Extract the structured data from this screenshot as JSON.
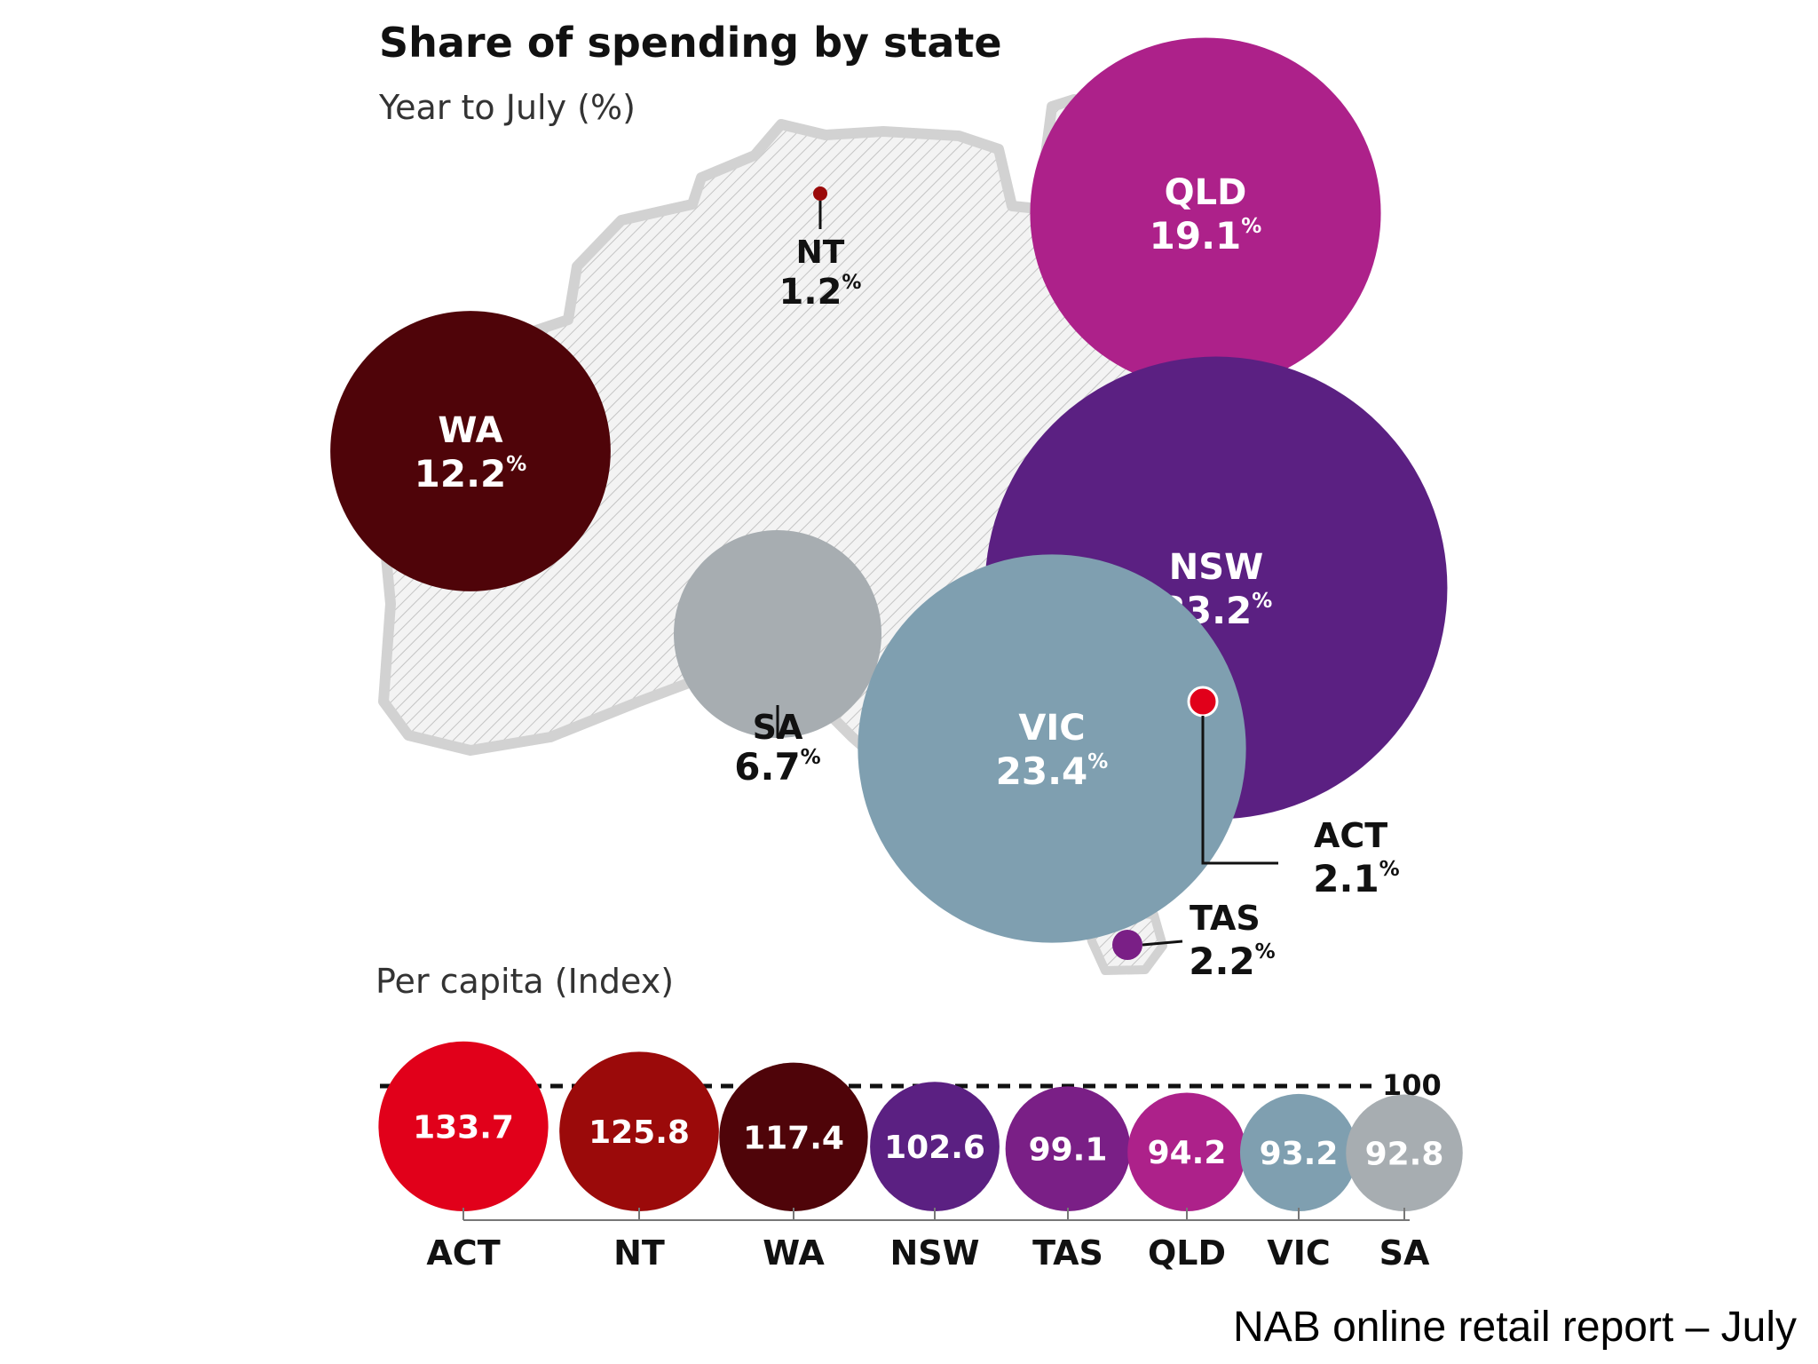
{
  "chart_data": [
    {
      "type": "bubble-map",
      "title": "Share of spending by state",
      "subtitle": "Year to July (%)",
      "unit": "%",
      "states": [
        {
          "name": "NT",
          "value": 1.2,
          "color": "#9b0a0a"
        },
        {
          "name": "QLD",
          "value": 19.1,
          "color": "#ad218a"
        },
        {
          "name": "WA",
          "value": 12.2,
          "color": "#4f0409"
        },
        {
          "name": "NSW",
          "value": 33.2,
          "color": "#5b2082"
        },
        {
          "name": "SA",
          "value": 6.7,
          "color": "#a7adb1"
        },
        {
          "name": "VIC",
          "value": 23.4,
          "color": "#7f9fb0"
        },
        {
          "name": "ACT",
          "value": 2.1,
          "color": "#e1001a"
        },
        {
          "name": "TAS",
          "value": 2.2,
          "color": "#7a1f86"
        }
      ]
    },
    {
      "type": "bubble-row",
      "title": "Per capita (Index)",
      "reference_line": 100,
      "categories": [
        "ACT",
        "NT",
        "WA",
        "NSW",
        "TAS",
        "QLD",
        "VIC",
        "SA"
      ],
      "values": [
        "133.7",
        "125.8",
        "117.4",
        "102.6",
        "99.1",
        "94.2",
        "93.2",
        "92.8"
      ],
      "colors": [
        "#e1001a",
        "#9b0a0a",
        "#4f0409",
        "#5b2082",
        "#7a1f86",
        "#ad218a",
        "#7f9fb0",
        "#a7adb1"
      ]
    }
  ],
  "source": "NAB online retail report – July"
}
